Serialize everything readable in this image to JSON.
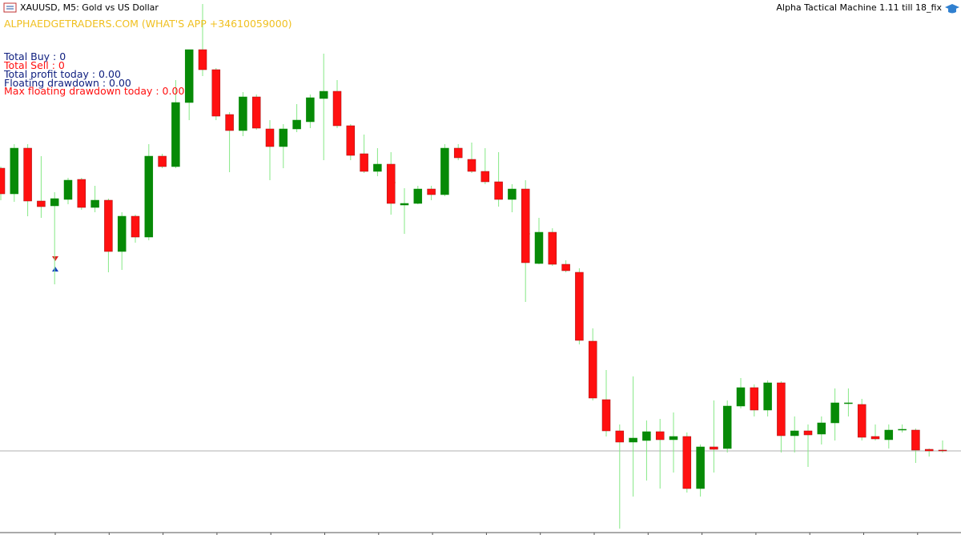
{
  "header": {
    "symbol": "XAUUSD, M5:  Gold vs US Dollar",
    "expert": "Alpha Tactical Machine 1.11 till 18_fix",
    "banner": "ALPHAEDGETRADERS.COM (WHAT'S APP +34610059000)"
  },
  "info": [
    "Total Buy : 0",
    "Total Sell : 0",
    "Total profit today : 0.00",
    "Floating drawdown : 0.00",
    "Max floating drawdown today : 0.00"
  ],
  "chart_data": {
    "type": "candlestick",
    "ylim": [
      0,
      668
    ],
    "up_color": "#078a07",
    "down_color": "#ff1010",
    "wick_color": "#86e886",
    "price_line": 105,
    "open": [
      458,
      426,
      483,
      417,
      411,
      419,
      444,
      409,
      418,
      354,
      398,
      372,
      473,
      460,
      540,
      606,
      581,
      525,
      505,
      547,
      507,
      485,
      507,
      516,
      545,
      554,
      511,
      476,
      454,
      463,
      412,
      414,
      432,
      425,
      483,
      469,
      454,
      441,
      419,
      432,
      339,
      378,
      338,
      328,
      242,
      169,
      130,
      116,
      118,
      129,
      119,
      123,
      58,
      110,
      108,
      161,
      184,
      156,
      190,
      124,
      130,
      126,
      140,
      164,
      163,
      123,
      119,
      131,
      131,
      107,
      106
    ],
    "high": [
      460,
      488,
      488,
      473,
      428,
      446,
      446,
      436,
      420,
      403,
      400,
      488,
      476,
      568,
      606,
      663,
      583,
      528,
      553,
      550,
      518,
      513,
      538,
      550,
      601,
      568,
      513,
      500,
      483,
      478,
      433,
      436,
      436,
      488,
      488,
      490,
      483,
      478,
      438,
      443,
      396,
      383,
      343,
      333,
      258,
      206,
      138,
      198,
      143,
      145,
      153,
      128,
      113,
      168,
      168,
      196,
      188,
      193,
      192,
      148,
      138,
      148,
      183,
      183,
      170,
      138,
      138,
      138,
      133,
      108,
      118
    ],
    "low": [
      418,
      416,
      398,
      396,
      313,
      413,
      406,
      403,
      328,
      331,
      365,
      368,
      458,
      458,
      518,
      573,
      518,
      453,
      498,
      506,
      443,
      458,
      503,
      508,
      468,
      508,
      468,
      452,
      448,
      400,
      376,
      413,
      418,
      423,
      468,
      452,
      438,
      410,
      403,
      291,
      338,
      336,
      328,
      238,
      168,
      123,
      8,
      48,
      68,
      58,
      78,
      53,
      48,
      78,
      103,
      158,
      148,
      148,
      103,
      103,
      85,
      113,
      118,
      148,
      118,
      118,
      108,
      128,
      90,
      98,
      103
    ],
    "close": [
      426,
      483,
      417,
      410,
      420,
      443,
      409,
      418,
      354,
      398,
      372,
      473,
      460,
      540,
      606,
      581,
      523,
      505,
      547,
      508,
      485,
      507,
      518,
      546,
      554,
      511,
      474,
      454,
      463,
      414,
      414,
      432,
      425,
      483,
      471,
      454,
      441,
      419,
      432,
      340,
      378,
      338,
      330,
      243,
      171,
      130,
      116,
      121,
      129,
      119,
      123,
      58,
      110,
      107,
      161,
      184,
      156,
      190,
      124,
      130,
      125,
      140,
      165,
      165,
      122,
      120,
      131,
      132,
      106,
      105,
      105
    ]
  }
}
